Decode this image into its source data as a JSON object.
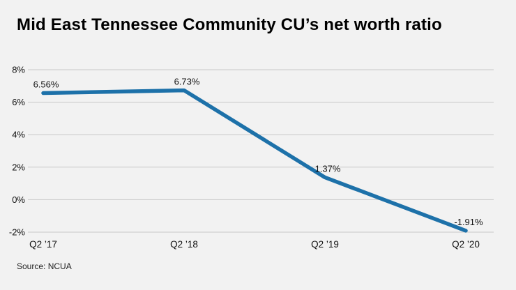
{
  "title": "Mid East Tennessee Community CU’s net worth ratio",
  "source": "Source: NCUA",
  "chart_data": {
    "type": "line",
    "title": "Mid East Tennessee Community CU’s net worth ratio",
    "categories": [
      "Q2 ’17",
      "Q2 ’18",
      "Q2 ’19",
      "Q2 ’20"
    ],
    "values": [
      6.56,
      6.73,
      1.37,
      -1.91
    ],
    "data_labels": [
      "6.56%",
      "6.73%",
      "1.37%",
      "-1.91%"
    ],
    "xlabel": "",
    "ylabel": "",
    "ylim": [
      -2,
      8
    ],
    "y_ticks": [
      8,
      6,
      4,
      2,
      0,
      -2
    ],
    "y_tick_labels": [
      "8%",
      "6%",
      "4%",
      "2%",
      "0%",
      "-2%"
    ],
    "grid": true,
    "legend": "none",
    "line_color": "#1d71a9",
    "gridline_color": "#c8c8c8",
    "background_color": "#f2f2f2",
    "text_color": "#111111"
  }
}
